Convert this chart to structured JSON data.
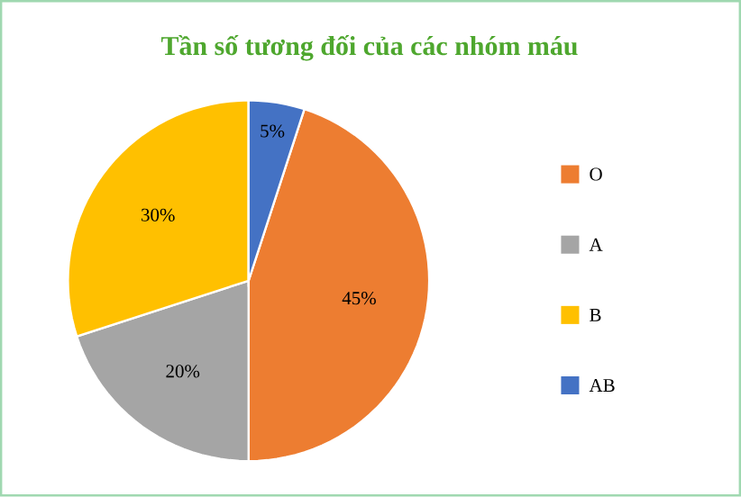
{
  "chart_data": {
    "type": "pie",
    "title": "Tần số tương đối của các nhóm máu",
    "categories": [
      "O",
      "A",
      "B",
      "AB"
    ],
    "values": [
      45,
      20,
      30,
      5
    ],
    "colors": [
      "#ed7d31",
      "#a5a5a5",
      "#ffc000",
      "#4472c4"
    ],
    "value_labels": [
      "45%",
      "20%",
      "30%",
      "5%"
    ],
    "legend": "right"
  }
}
